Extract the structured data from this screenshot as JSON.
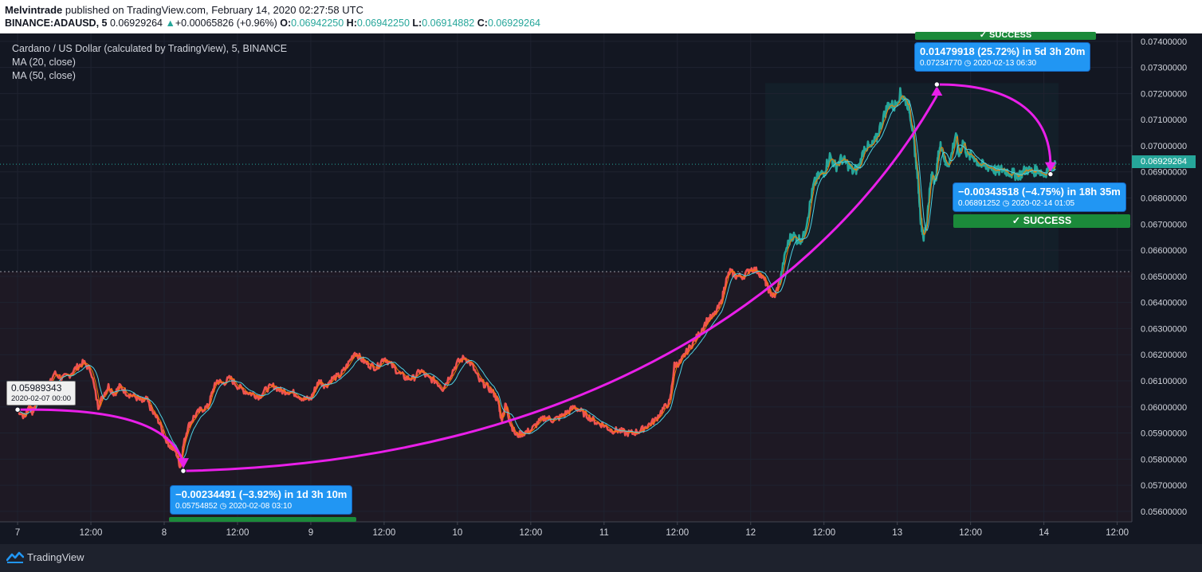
{
  "header": {
    "publisher": "Melvintrade",
    "published_text": "published on TradingView.com, February 14, 2020 02:27:58 UTC",
    "symbol": "BINANCE:ADAUSD, 5",
    "last": "0.06929264",
    "change_arrow": "▲",
    "change": "+0.00065826 (+0.96%)",
    "o_label": "O:",
    "o_value": "0.06942250",
    "h_label": "H:",
    "h_value": "0.06942250",
    "l_label": "L:",
    "l_value": "0.06914882",
    "c_label": "C:",
    "c_value": "0.06929264"
  },
  "legend": {
    "title": "Cardano / US Dollar (calculated by TradingView), 5, BINANCE",
    "ma20": "MA (20, close)",
    "ma50": "MA (50, close)"
  },
  "annotations": {
    "start": {
      "value": "0.05989343",
      "date": "2020-02-07 00:00"
    },
    "drop1": {
      "main": "−0.00234491 (−3.92%) in 1d 3h 10m",
      "sub_price": "0.05754852",
      "sub_date": "2020-02-08  03:10"
    },
    "rise": {
      "main": "0.01479918 (25.72%) in 5d 3h 20m",
      "sub_price": "0.07234770",
      "sub_date": "2020-02-13  06:30"
    },
    "drop2": {
      "main": "−0.00343518 (−4.75%) in 18h 35m",
      "sub_price": "0.06891252",
      "sub_date": "2020-02-14  01:05"
    },
    "success_label": "✓ SUCCESS",
    "success_top_label": "✓ SUCCESS"
  },
  "price_tag": "0.06929264",
  "footer": {
    "brand": "TradingView",
    "logo_icon": "tradingview-logo-icon"
  },
  "colors": {
    "up": "#26a69a",
    "down": "#ef5350",
    "ma20": "#f57c00",
    "ma50": "#4dd0e1",
    "arrow": "#e91fe9",
    "annot": "#2196f3",
    "success": "#1b8a3a"
  },
  "chart_data": {
    "type": "line",
    "symbol": "BINANCE:ADAUSD",
    "interval": "5",
    "ylim": [
      0.0556,
      0.0743
    ],
    "y_ticks": [
      0.074,
      0.073,
      0.072,
      0.071,
      0.07,
      0.069,
      0.068,
      0.067,
      0.066,
      0.065,
      0.064,
      0.063,
      0.062,
      0.061,
      0.06,
      0.059,
      0.058,
      0.057,
      0.056
    ],
    "y_tick_labels": [
      "0.07400000",
      "0.07300000",
      "0.07200000",
      "0.07100000",
      "0.07000000",
      "0.06900000",
      "0.06800000",
      "0.06700000",
      "0.06600000",
      "0.06500000",
      "0.06400000",
      "0.06300000",
      "0.06200000",
      "0.06100000",
      "0.06000000",
      "0.05900000",
      "0.05800000",
      "0.05700000",
      "0.05600000"
    ],
    "x_range": [
      -0.12,
      7.6
    ],
    "x_ticks": [
      0,
      0.5,
      1,
      1.5,
      2,
      2.5,
      3,
      3.5,
      4,
      4.5,
      5,
      5.5,
      6,
      6.5,
      7,
      7.5
    ],
    "x_tick_labels": [
      "7",
      "12:00",
      "8",
      "12:00",
      "9",
      "12:00",
      "10",
      "12:00",
      "11",
      "12:00",
      "12",
      "12:00",
      "13",
      "12:00",
      "14",
      "12:00"
    ],
    "x_unit": "days since Feb 7 2020 00:00",
    "series": [
      {
        "name": "ADAUSD",
        "points": [
          [
            0.0,
            0.0599
          ],
          [
            0.05,
            0.0596
          ],
          [
            0.08,
            0.0601
          ],
          [
            0.1,
            0.0598
          ],
          [
            0.12,
            0.06
          ],
          [
            0.14,
            0.061
          ],
          [
            0.17,
            0.0602
          ],
          [
            0.2,
            0.0606
          ],
          [
            0.25,
            0.0613
          ],
          [
            0.3,
            0.0611
          ],
          [
            0.35,
            0.0612
          ],
          [
            0.4,
            0.0615
          ],
          [
            0.45,
            0.0617
          ],
          [
            0.5,
            0.0614
          ],
          [
            0.55,
            0.06
          ],
          [
            0.58,
            0.0604
          ],
          [
            0.62,
            0.0608
          ],
          [
            0.66,
            0.0605
          ],
          [
            0.7,
            0.0608
          ],
          [
            0.75,
            0.0605
          ],
          [
            0.8,
            0.0604
          ],
          [
            0.85,
            0.0602
          ],
          [
            0.88,
            0.0603
          ],
          [
            0.92,
            0.0598
          ],
          [
            0.96,
            0.0595
          ],
          [
            1.0,
            0.0589
          ],
          [
            1.04,
            0.0585
          ],
          [
            1.08,
            0.0583
          ],
          [
            1.11,
            0.0577
          ],
          [
            1.13,
            0.0585
          ],
          [
            1.16,
            0.0592
          ],
          [
            1.2,
            0.0596
          ],
          [
            1.25,
            0.0599
          ],
          [
            1.3,
            0.06
          ],
          [
            1.33,
            0.0606
          ],
          [
            1.36,
            0.061
          ],
          [
            1.4,
            0.0609
          ],
          [
            1.45,
            0.0611
          ],
          [
            1.5,
            0.0608
          ],
          [
            1.55,
            0.0606
          ],
          [
            1.6,
            0.0605
          ],
          [
            1.65,
            0.0604
          ],
          [
            1.7,
            0.0607
          ],
          [
            1.75,
            0.0608
          ],
          [
            1.8,
            0.0606
          ],
          [
            1.85,
            0.0606
          ],
          [
            1.9,
            0.0605
          ],
          [
            1.95,
            0.0603
          ],
          [
            2.0,
            0.0603
          ],
          [
            2.03,
            0.0607
          ],
          [
            2.06,
            0.061
          ],
          [
            2.1,
            0.0608
          ],
          [
            2.15,
            0.0611
          ],
          [
            2.2,
            0.0612
          ],
          [
            2.25,
            0.0616
          ],
          [
            2.3,
            0.0621
          ],
          [
            2.35,
            0.0618
          ],
          [
            2.4,
            0.0616
          ],
          [
            2.45,
            0.0615
          ],
          [
            2.5,
            0.0619
          ],
          [
            2.55,
            0.0616
          ],
          [
            2.6,
            0.0613
          ],
          [
            2.65,
            0.0611
          ],
          [
            2.7,
            0.0611
          ],
          [
            2.75,
            0.0614
          ],
          [
            2.8,
            0.0611
          ],
          [
            2.85,
            0.061
          ],
          [
            2.9,
            0.0607
          ],
          [
            2.95,
            0.0612
          ],
          [
            3.0,
            0.0617
          ],
          [
            3.05,
            0.0619
          ],
          [
            3.1,
            0.0616
          ],
          [
            3.15,
            0.061
          ],
          [
            3.2,
            0.0608
          ],
          [
            3.25,
            0.0605
          ],
          [
            3.28,
            0.0602
          ],
          [
            3.3,
            0.0595
          ],
          [
            3.33,
            0.0601
          ],
          [
            3.36,
            0.0594
          ],
          [
            3.4,
            0.0589
          ],
          [
            3.45,
            0.059
          ],
          [
            3.5,
            0.0591
          ],
          [
            3.55,
            0.0594
          ],
          [
            3.6,
            0.0596
          ],
          [
            3.65,
            0.0595
          ],
          [
            3.7,
            0.0596
          ],
          [
            3.75,
            0.0598
          ],
          [
            3.8,
            0.06
          ],
          [
            3.85,
            0.0598
          ],
          [
            3.9,
            0.0596
          ],
          [
            3.95,
            0.0594
          ],
          [
            4.0,
            0.0593
          ],
          [
            4.05,
            0.0591
          ],
          [
            4.1,
            0.0591
          ],
          [
            4.15,
            0.059
          ],
          [
            4.2,
            0.059
          ],
          [
            4.25,
            0.0591
          ],
          [
            4.3,
            0.0593
          ],
          [
            4.35,
            0.0595
          ],
          [
            4.4,
            0.0599
          ],
          [
            4.45,
            0.0602
          ],
          [
            4.48,
            0.0616
          ],
          [
            4.52,
            0.0617
          ],
          [
            4.55,
            0.062
          ],
          [
            4.6,
            0.0624
          ],
          [
            4.65,
            0.0628
          ],
          [
            4.7,
            0.0633
          ],
          [
            4.75,
            0.0635
          ],
          [
            4.8,
            0.064
          ],
          [
            4.83,
            0.0648
          ],
          [
            4.86,
            0.0652
          ],
          [
            4.9,
            0.065
          ],
          [
            4.95,
            0.065
          ],
          [
            5.0,
            0.0653
          ],
          [
            5.05,
            0.0652
          ],
          [
            5.1,
            0.0648
          ],
          [
            5.13,
            0.0644
          ],
          [
            5.16,
            0.0642
          ],
          [
            5.2,
            0.0648
          ],
          [
            5.24,
            0.066
          ],
          [
            5.28,
            0.0666
          ],
          [
            5.32,
            0.0664
          ],
          [
            5.36,
            0.0665
          ],
          [
            5.4,
            0.0676
          ],
          [
            5.43,
            0.0685
          ],
          [
            5.46,
            0.0688
          ],
          [
            5.5,
            0.069
          ],
          [
            5.54,
            0.0696
          ],
          [
            5.58,
            0.0692
          ],
          [
            5.62,
            0.0695
          ],
          [
            5.66,
            0.0693
          ],
          [
            5.7,
            0.069
          ],
          [
            5.74,
            0.0692
          ],
          [
            5.78,
            0.07
          ],
          [
            5.82,
            0.0699
          ],
          [
            5.86,
            0.0703
          ],
          [
            5.9,
            0.071
          ],
          [
            5.94,
            0.0716
          ],
          [
            5.98,
            0.0715
          ],
          [
            6.02,
            0.072
          ],
          [
            6.05,
            0.0718
          ],
          [
            6.08,
            0.0715
          ],
          [
            6.1,
            0.0708
          ],
          [
            6.12,
            0.0698
          ],
          [
            6.14,
            0.0688
          ],
          [
            6.16,
            0.0672
          ],
          [
            6.18,
            0.0665
          ],
          [
            6.2,
            0.067
          ],
          [
            6.22,
            0.0682
          ],
          [
            6.24,
            0.069
          ],
          [
            6.26,
            0.0686
          ],
          [
            6.28,
            0.0696
          ],
          [
            6.3,
            0.0701
          ],
          [
            6.33,
            0.0693
          ],
          [
            6.36,
            0.0694
          ],
          [
            6.4,
            0.0705
          ],
          [
            6.42,
            0.0696
          ],
          [
            6.45,
            0.0702
          ],
          [
            6.48,
            0.0696
          ],
          [
            6.52,
            0.0696
          ],
          [
            6.56,
            0.0693
          ],
          [
            6.6,
            0.0692
          ],
          [
            6.64,
            0.0692
          ],
          [
            6.68,
            0.069
          ],
          [
            6.72,
            0.0691
          ],
          [
            6.76,
            0.069
          ],
          [
            6.8,
            0.0689
          ],
          [
            6.84,
            0.0689
          ],
          [
            6.88,
            0.0691
          ],
          [
            6.92,
            0.069
          ],
          [
            6.96,
            0.0691
          ],
          [
            7.0,
            0.0689
          ],
          [
            7.04,
            0.0692
          ],
          [
            7.08,
            0.0693
          ]
        ]
      },
      {
        "name": "MA (20, close)"
      },
      {
        "name": "MA (50, close)"
      }
    ],
    "reference_lines": [
      0.06929264,
      0.06518
    ],
    "measurements": [
      {
        "from": [
          0.0,
          0.05989343
        ],
        "to": [
          1.13,
          0.05754852
        ]
      },
      {
        "from": [
          1.13,
          0.05754852
        ],
        "to": [
          6.27,
          0.0723477
        ]
      },
      {
        "from": [
          6.27,
          0.0723477
        ],
        "to": [
          7.045,
          0.06891252
        ]
      }
    ]
  }
}
